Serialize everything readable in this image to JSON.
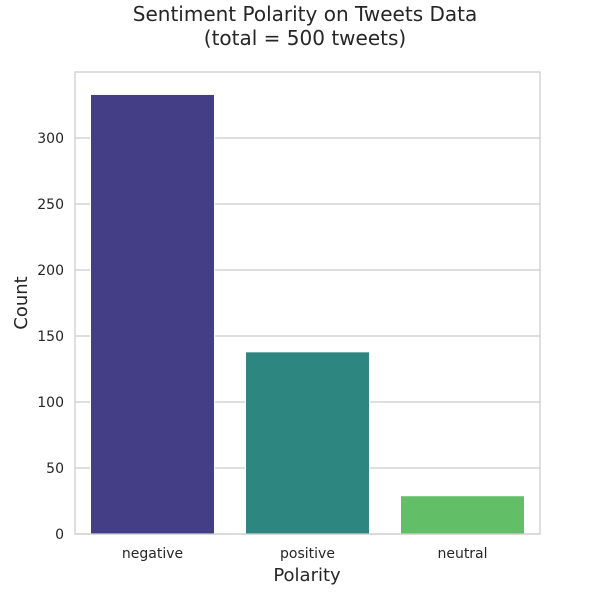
{
  "chart_data": {
    "type": "bar",
    "title": "Sentiment Polarity on Tweets Data",
    "subtitle": "(total = 500 tweets)",
    "xlabel": "Polarity",
    "ylabel": "Count",
    "categories": [
      "negative",
      "positive",
      "neutral"
    ],
    "values": [
      333,
      138,
      29
    ],
    "colors": [
      "#433e85",
      "#2d867f",
      "#62bf68"
    ],
    "ylim": [
      0,
      350
    ],
    "yticks": [
      0,
      50,
      100,
      150,
      200,
      250,
      300
    ],
    "grid": true,
    "legend": "none"
  }
}
